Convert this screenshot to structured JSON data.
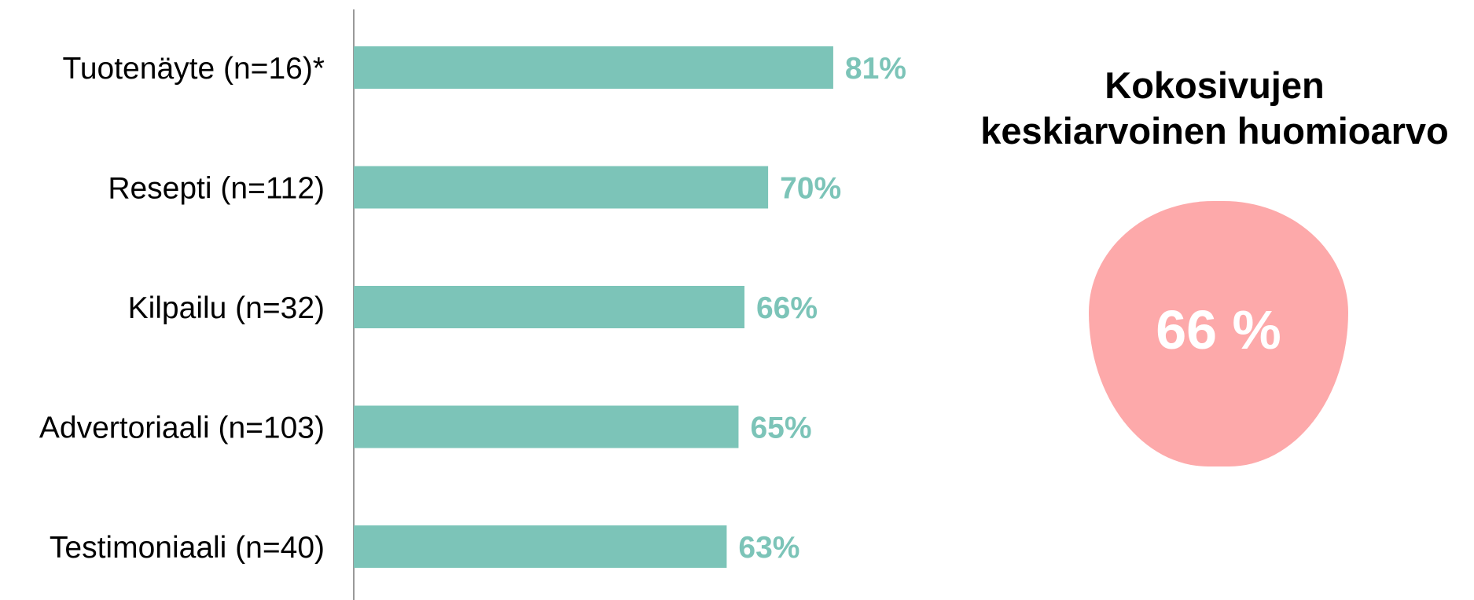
{
  "colors": {
    "bar": "#7cc4b8",
    "value_label": "#7cc4b8",
    "axis": "#999999",
    "blob": "#fda9aa"
  },
  "summary": {
    "title_line1": "Kokosivujen",
    "title_line2": "keskiarvoinen huomioarvo",
    "value": "66 %"
  },
  "chart_data": {
    "type": "bar",
    "orientation": "horizontal",
    "categories": [
      "Tuotenäyte (n=16)*",
      "Resepti (n=112)",
      "Kilpailu (n=32)",
      "Advertoriaali (n=103)",
      "Testimoniaali (n=40)"
    ],
    "values": [
      81,
      70,
      66,
      65,
      63
    ],
    "value_labels": [
      "81%",
      "70%",
      "66%",
      "65%",
      "63%"
    ],
    "unit": "%",
    "xlim": [
      0,
      100
    ],
    "grid": false,
    "title": "",
    "xlabel": "",
    "ylabel": ""
  }
}
